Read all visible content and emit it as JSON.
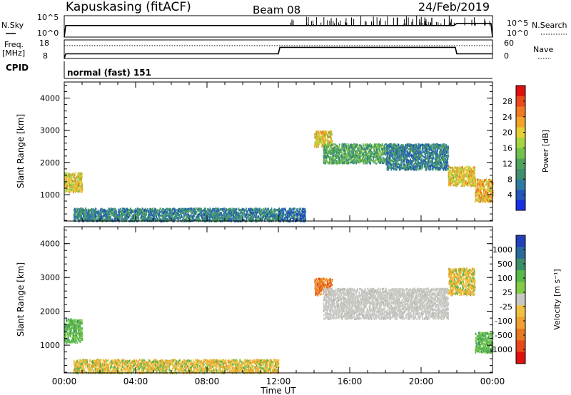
{
  "header": {
    "station": "Kapuskasing (fitACF)",
    "beam": "Beam 08",
    "date": "24/Feb/2019"
  },
  "nsky_panel": {
    "left_label": "N.Sky",
    "right_label": "N.Search",
    "ytick_top": "10^5",
    "ytick_bottom": "10^0",
    "rtick_top": "10^5",
    "rtick_bottom": "10^0"
  },
  "freq_panel": {
    "left_label_1": "Freq.",
    "left_label_2": "[MHz]",
    "right_label": "Nave",
    "ytick_top": "18",
    "ytick_bottom": "8",
    "rtick_top": "60",
    "rtick_bottom": "0"
  },
  "cpid_panel": {
    "label": "CPID",
    "text": "normal (fast) 151"
  },
  "xaxis": {
    "label": "Time UT",
    "ticks": [
      "00:00",
      "04:00",
      "08:00",
      "12:00",
      "16:00",
      "20:00",
      "00:00"
    ]
  },
  "power_panel": {
    "ylabel": "Slant Range [km]",
    "yticks": [
      "1000",
      "2000",
      "3000",
      "4000"
    ],
    "colorbar_label": "Power [dB]",
    "colorbar_ticks": [
      "4",
      "8",
      "12",
      "16",
      "20",
      "24",
      "28"
    ]
  },
  "velocity_panel": {
    "ylabel": "Slant Range [km]",
    "yticks": [
      "1000",
      "2000",
      "3000",
      "4000"
    ],
    "colorbar_label": "Velocity [m s⁻¹]",
    "colorbar_ticks": [
      "1000",
      "500",
      "100",
      "25",
      "-25",
      "-100",
      "-500",
      "-1000"
    ]
  },
  "colors": {
    "power_scale": [
      "#1a2ee6",
      "#2456b8",
      "#2f7aa0",
      "#3f8f6e",
      "#4ea45a",
      "#73c24a",
      "#a6d341",
      "#e6cf35",
      "#f2a42a",
      "#f07a20",
      "#ea4a1a",
      "#e01010"
    ],
    "velocity_scale": [
      "#2440b8",
      "#2a6a9a",
      "#3a8e6a",
      "#58b84a",
      "#82cc46",
      "#c8c8c4",
      "#f0c040",
      "#f0a030",
      "#e87820",
      "#e84818",
      "#e01010"
    ]
  },
  "chart_data": [
    {
      "type": "line",
      "name": "N.Sky / N.Search",
      "x": [
        "00:00",
        "00:05",
        "04:00",
        "08:00",
        "12:00",
        "12:30",
        "16:00",
        "20:00",
        "21:50",
        "22:00",
        "23:55",
        "24:00"
      ],
      "y_scale": "log",
      "ylim": [
        1,
        100000
      ],
      "values": [
        1,
        500,
        500,
        500,
        500,
        500,
        500,
        500,
        500,
        1500,
        1500,
        1
      ]
    },
    {
      "type": "line",
      "name": "Frequency / Nave",
      "x": [
        "00:00",
        "00:05",
        "12:00",
        "12:05",
        "21:55",
        "22:00",
        "24:00"
      ],
      "ylim": [
        8,
        18
      ],
      "frequency_mhz": [
        8,
        10.5,
        10.5,
        14,
        14,
        10.5,
        10.5
      ]
    },
    {
      "type": "heatmap",
      "name": "Power",
      "x_range_hours": [
        0,
        24
      ],
      "ylim_km": [
        180,
        4500
      ],
      "color_range_db": [
        0,
        32
      ],
      "regions": [
        {
          "t0": 0.0,
          "t1": 1.0,
          "r0": 1100,
          "r1": 1700,
          "db": 20
        },
        {
          "t0": 0.5,
          "t1": 12.0,
          "r0": 200,
          "r1": 600,
          "db": 8
        },
        {
          "t0": 12.0,
          "t1": 13.5,
          "r0": 200,
          "r1": 600,
          "db": 6
        },
        {
          "t0": 14.0,
          "t1": 15.0,
          "r0": 2500,
          "r1": 3000,
          "db": 20
        },
        {
          "t0": 14.5,
          "t1": 18.0,
          "r0": 2000,
          "r1": 2600,
          "db": 12
        },
        {
          "t0": 18.0,
          "t1": 21.5,
          "r0": 1800,
          "r1": 2600,
          "db": 8
        },
        {
          "t0": 21.5,
          "t1": 23.0,
          "r0": 1300,
          "r1": 1900,
          "db": 20
        },
        {
          "t0": 23.0,
          "t1": 24.0,
          "r0": 800,
          "r1": 1500,
          "db": 22
        }
      ]
    },
    {
      "type": "heatmap",
      "name": "Velocity",
      "x_range_hours": [
        0,
        24
      ],
      "ylim_km": [
        180,
        4500
      ],
      "color_ticks_ms": [
        1000,
        500,
        100,
        25,
        -25,
        -100,
        -500,
        -1000
      ],
      "regions": [
        {
          "t0": 0.0,
          "t1": 1.0,
          "r0": 1100,
          "r1": 1800,
          "v": 100
        },
        {
          "t0": 0.5,
          "t1": 12.0,
          "r0": 200,
          "r1": 600,
          "v": -100
        },
        {
          "t0": 14.0,
          "t1": 15.0,
          "r0": 2500,
          "r1": 3000,
          "v": -500
        },
        {
          "t0": 14.5,
          "t1": 21.5,
          "r0": 1800,
          "r1": 2700,
          "v": 0
        },
        {
          "t0": 21.5,
          "t1": 23.0,
          "r0": 2500,
          "r1": 3300,
          "v": -100
        },
        {
          "t0": 23.0,
          "t1": 24.0,
          "r0": 800,
          "r1": 1400,
          "v": 100
        }
      ]
    }
  ]
}
